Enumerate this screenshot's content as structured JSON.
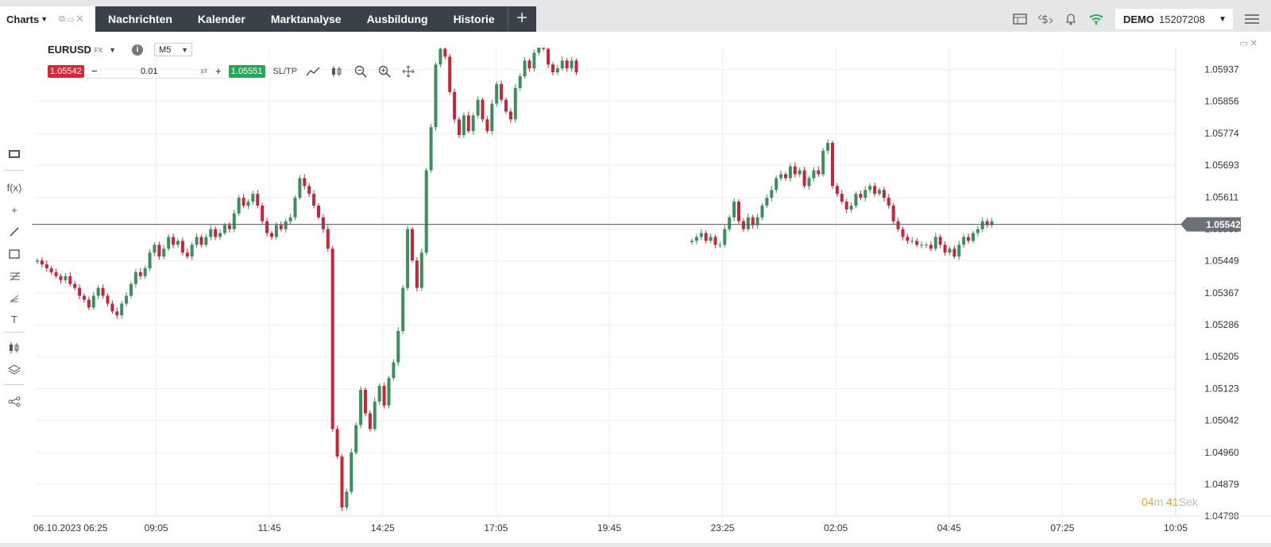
{
  "tab": {
    "label": "Charts"
  },
  "nav": {
    "items": [
      "Nachrichten",
      "Kalender",
      "Marktanalyse",
      "Ausbildung",
      "Historie"
    ]
  },
  "account": {
    "mode": "DEMO",
    "number": "15207208"
  },
  "icons": {
    "toolbar_right": [
      "layout-icon",
      "currency-exchange-icon",
      "bell-icon",
      "wifi-signal-icon",
      "hamburger-menu-icon"
    ],
    "left_tools": [
      "display-mode-icon",
      "indicators-fx-icon",
      "crosshair-icon",
      "trendline-icon",
      "rectangle-icon",
      "fibonacci-icon",
      "pitchfork-icon",
      "text-icon",
      "candle-type-icon",
      "layers-icon",
      "share-icon"
    ],
    "chart_tools": [
      "line-chart-icon",
      "candles-icon",
      "zoom-out-icon",
      "zoom-in-icon",
      "move-icon"
    ]
  },
  "instrument": {
    "symbol": "EURUSD",
    "type": "FX",
    "timeframe": "M5"
  },
  "trade": {
    "sell": "1.05542",
    "buy": "1.05551",
    "qty": "0.01",
    "sltp": "SL/TP"
  },
  "countdown": {
    "min": "04",
    "min_unit": "m",
    "sec": "41",
    "sec_unit": "Sek"
  },
  "colors": {
    "up": "#3a8f5c",
    "down": "#c8243a",
    "sell": "#d9263a",
    "buy": "#26a65b",
    "countdown": "#f0a020"
  },
  "chart_data": {
    "type": "candlestick",
    "y_ticks": [
      "1.05937",
      "1.05856",
      "1.05774",
      "1.05693",
      "1.05611",
      "1.05530",
      "1.05449",
      "1.05367",
      "1.05286",
      "1.05205",
      "1.05123",
      "1.05042",
      "1.04960",
      "1.04879",
      "1.04798"
    ],
    "ylim": [
      1.04798,
      1.05993
    ],
    "x_ticks": [
      "06.10.2023 06:25",
      "09:05",
      "11:45",
      "14:25",
      "17:05",
      "19:45",
      "23:25",
      "02:05",
      "04:45",
      "07:25",
      "10:05"
    ],
    "current_price": "1.05542",
    "current_price_value": 1.05542,
    "grid": true,
    "series": [
      {
        "name": "Session 1",
        "closes": [
          1.0545,
          1.0544,
          1.0543,
          1.0542,
          1.0541,
          1.054,
          1.0541,
          1.0539,
          1.0538,
          1.0536,
          1.0535,
          1.0533,
          1.0536,
          1.0538,
          1.0536,
          1.0534,
          1.0532,
          1.0531,
          1.0534,
          1.0536,
          1.0539,
          1.0542,
          1.0541,
          1.0543,
          1.0547,
          1.0549,
          1.0546,
          1.0548,
          1.0551,
          1.0549,
          1.055,
          1.0547,
          1.0546,
          1.0549,
          1.0551,
          1.0549,
          1.0551,
          1.0553,
          1.0551,
          1.0552,
          1.0554,
          1.0553,
          1.0557,
          1.0561,
          1.0559,
          1.056,
          1.0562,
          1.0559,
          1.0555,
          1.0552,
          1.0551,
          1.0554,
          1.0553,
          1.0555,
          1.0556,
          1.0561,
          1.0566,
          1.0564,
          1.0562,
          1.0559,
          1.0556,
          1.0553,
          1.0548,
          1.0502,
          1.0495,
          1.0482,
          1.0486,
          1.0496,
          1.0503,
          1.0512,
          1.0506,
          1.0502,
          1.0509,
          1.0513,
          1.0508,
          1.0515,
          1.0519,
          1.0527,
          1.0538,
          1.0553,
          1.0545,
          1.0538,
          1.0547,
          1.0568,
          1.0579,
          1.0595,
          1.0599,
          1.0597,
          1.0588,
          1.0581,
          1.0577,
          1.0582,
          1.0578,
          1.0582,
          1.0586,
          1.0581,
          1.0578,
          1.0585,
          1.059,
          1.0586,
          1.0583,
          1.0581,
          1.0589,
          1.0592,
          1.0596,
          1.0594,
          1.0598,
          1.0601,
          1.0599,
          1.0595,
          1.0593,
          1.0594,
          1.0596,
          1.0594,
          1.0596,
          1.0593
        ]
      },
      {
        "name": "Session 2",
        "closes": [
          1.055,
          1.0551,
          1.0552,
          1.055,
          1.0551,
          1.0549,
          1.0549,
          1.0553,
          1.0556,
          1.056,
          1.0555,
          1.0553,
          1.0556,
          1.0554,
          1.0556,
          1.0559,
          1.0561,
          1.0563,
          1.0566,
          1.0567,
          1.0566,
          1.0569,
          1.0567,
          1.0568,
          1.0564,
          1.0566,
          1.0568,
          1.0567,
          1.0573,
          1.0575,
          1.0564,
          1.0562,
          1.056,
          1.0558,
          1.0559,
          1.0562,
          1.0561,
          1.0563,
          1.0564,
          1.0562,
          1.0563,
          1.0561,
          1.0559,
          1.0555,
          1.0553,
          1.0551,
          1.055,
          1.055,
          1.0549,
          1.0549,
          1.0549,
          1.0548,
          1.0551,
          1.0549,
          1.0547,
          1.0548,
          1.0546,
          1.0549,
          1.0551,
          1.055,
          1.0552,
          1.0553,
          1.0555,
          1.0554,
          1.0555
        ]
      }
    ]
  }
}
